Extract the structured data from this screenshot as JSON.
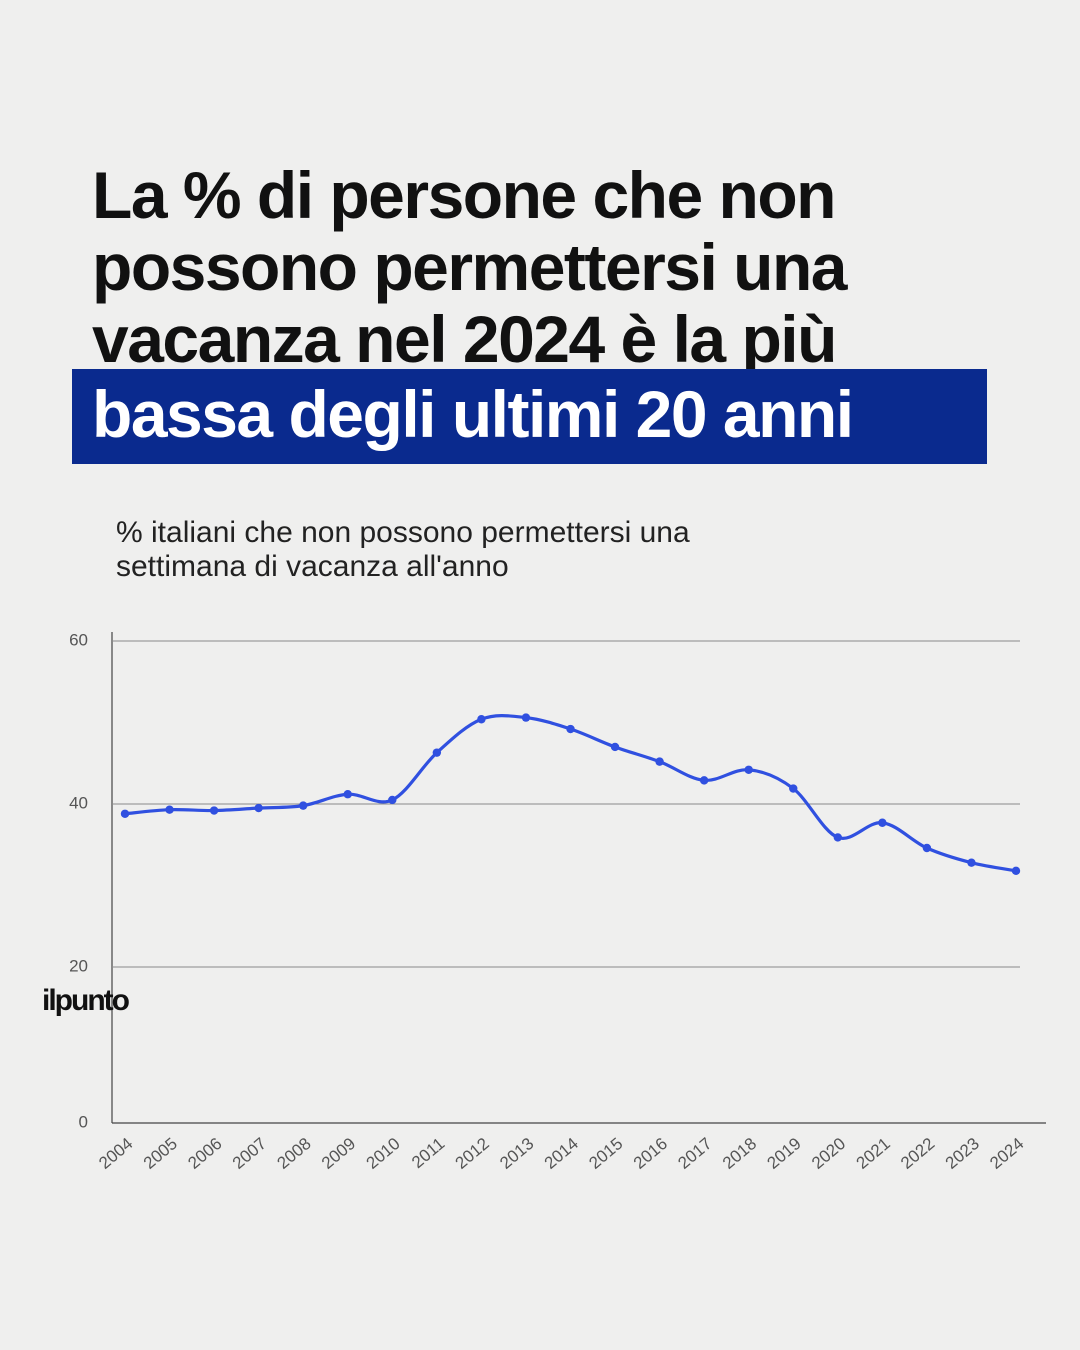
{
  "chart_data": {
    "type": "line",
    "title": [
      "La % di persone che non",
      "possono permettersi una",
      "vacanza nel 2024 è la più",
      "bassa degli ultimi 20 anni"
    ],
    "subtitle": [
      "%  italiani che non possono permettersi una",
      "settimana di vacanza all'anno"
    ],
    "categories": [
      "2004",
      "2005",
      "2006",
      "2007",
      "2008",
      "2009",
      "2010",
      "2011",
      "2012",
      "2013",
      "2014",
      "2015",
      "2016",
      "2017",
      "2018",
      "2019",
      "2020",
      "2021",
      "2022",
      "2023",
      "2024"
    ],
    "series": [
      {
        "color": "#3050e0",
        "values": [
          38.8,
          39.3,
          39.2,
          39.5,
          39.8,
          41.2,
          40.5,
          46.3,
          50.4,
          50.6,
          49.2,
          47.0,
          45.2,
          42.9,
          44.2,
          41.9,
          35.9,
          37.7,
          34.6,
          32.8,
          31.8
        ]
      }
    ],
    "ylim": [
      0,
      60
    ],
    "yticks": [
      0,
      20,
      40,
      60
    ],
    "grid": true,
    "brand": "ilpunto"
  }
}
